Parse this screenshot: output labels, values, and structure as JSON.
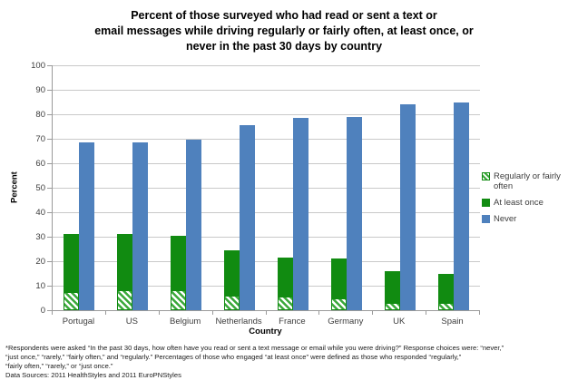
{
  "title": {
    "lines": [
      "Percent of those surveyed who had read or sent a text or",
      "email messages while driving regularly or fairly often, at least once, or",
      "never in the past 30 days by country"
    ]
  },
  "chart_data": {
    "type": "bar",
    "title": "Percent of those surveyed who had read or sent a text or email messages while driving regularly or fairly often, at least once, or never in the past 30 days by country",
    "xlabel": "Country",
    "ylabel": "Percent",
    "ylim": [
      0,
      100
    ],
    "ytick_step": 10,
    "grid": true,
    "legend_position": "right",
    "layout_note": "Series 'Regularly or fairly often' (hatched) is drawn in front of 'At least once' (solid green) at the same x position; 'Never' (blue) is a separate adjacent bar.",
    "categories": [
      "Portugal",
      "US",
      "Belgium",
      "Netherlands",
      "France",
      "Germany",
      "UK",
      "Spain"
    ],
    "series": [
      {
        "name": "Regularly or fairly often",
        "style": "hatched-green",
        "values": [
          7.5,
          8,
          8,
          6,
          5.5,
          5,
          3,
          3
        ]
      },
      {
        "name": "At least once",
        "style": "solid-green",
        "values": [
          31,
          31,
          30.5,
          24.5,
          21.5,
          21,
          16,
          15
        ]
      },
      {
        "name": "Never",
        "style": "solid-blue",
        "values": [
          68.5,
          68.5,
          69.5,
          75.5,
          78.5,
          79,
          84,
          85
        ]
      }
    ]
  },
  "colors": {
    "blue": "#4F81BD",
    "green": "#118b11",
    "hatch_stripe": "#3aa83a",
    "gridline": "#c9c9c9",
    "axis": "#9a9a9a"
  },
  "footnote": {
    "lines": [
      "*Respondents were asked “In the past 30 days, how often have you read or sent a text message or email while you were driving?” Response choices were: “never,”",
      "“just once,” “rarely,” “fairly often,” and “regularly.”  Percentages of those who engaged “at least once” were defined as those who responded “regularly,”",
      "“fairly often,” “rarely,” or “just once.”"
    ],
    "data_sources": "Data Sources: 2011 HealthStyles and 2011 EuroPNStyles"
  }
}
